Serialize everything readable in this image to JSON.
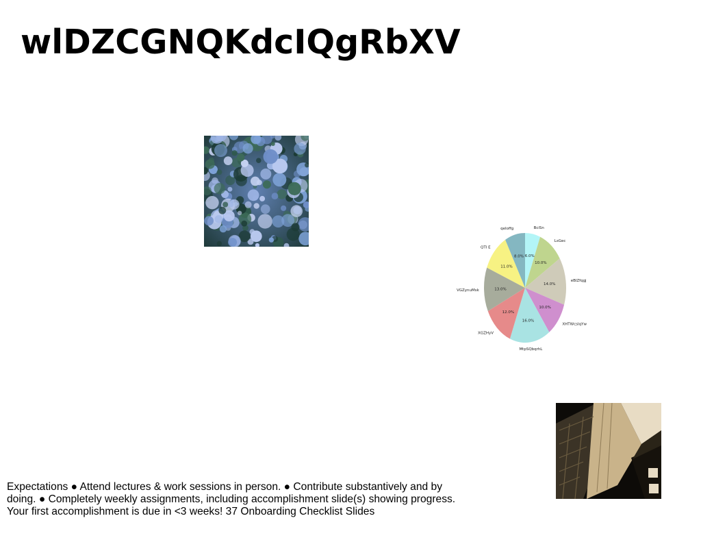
{
  "slide": {
    "title": "wlDZCGNQKdcIQgRbXV",
    "body_text": "Expectations ● Attend lectures & work sessions in person. ● Contribute substantively and by doing. ● Completely weekly assignments, including accomplishment slide(s) showing progress. Your first accomplishment is due in <3 weeks! 37 Onboarding Checklist Slides"
  },
  "images": {
    "forest": "aerial-forest-photo",
    "building": "building-perspective-photo"
  },
  "chart_data": {
    "type": "pie",
    "title": "",
    "start_angle_deg": 90,
    "direction": "clockwise",
    "slices": [
      {
        "label": "BciSn",
        "value": 6.0,
        "display": "6.0%",
        "color": "#b3f5f7"
      },
      {
        "label": "LsGec",
        "value": 10.0,
        "display": "10.0%",
        "color": "#bfd58e"
      },
      {
        "label": "eBlZfqgj",
        "value": 14.0,
        "display": "14.0%",
        "color": "#cfcbb9"
      },
      {
        "label": "XHTWcsIqYw",
        "value": 10.0,
        "display": "10.0%",
        "color": "#cf8fce"
      },
      {
        "label": "MtpSQbqrhL",
        "value": 16.0,
        "display": "16.0%",
        "color": "#a9e3e3"
      },
      {
        "label": "XGZHyV",
        "value": 12.0,
        "display": "12.0%",
        "color": "#e68a8a"
      },
      {
        "label": "VGZynuMsk",
        "value": 13.0,
        "display": "13.0%",
        "color": "#a7ac9c"
      },
      {
        "label": "QTI E",
        "value": 11.0,
        "display": "11.0%",
        "color": "#f7f283"
      },
      {
        "label": "qeIoffg",
        "value": 8.0,
        "display": "8.0%",
        "color": "#84b7c1"
      }
    ]
  }
}
